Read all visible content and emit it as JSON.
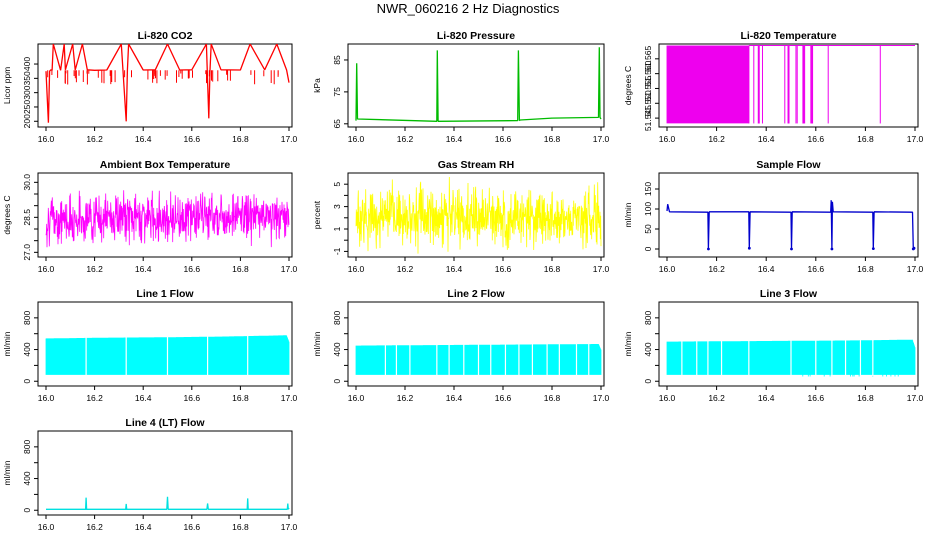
{
  "page_title": "NWR_060216 2 Hz Diagnostics",
  "chart_data": [
    {
      "type": "line",
      "title": "Li-820 CO2",
      "xlabel": "",
      "ylabel": "Licor ppm",
      "color": "#ff0000",
      "xlim": [
        16.0,
        17.0
      ],
      "ylim": [
        180,
        470
      ],
      "xticks": [
        "16.0",
        "16.2",
        "16.4",
        "16.6",
        "16.8",
        "17.0"
      ],
      "xtick_values": [
        16.0,
        16.2,
        16.4,
        16.6,
        16.8,
        17.0
      ],
      "yticks": [
        "200",
        "250",
        "300",
        "350",
        "400"
      ],
      "ytick_values": [
        200,
        250,
        300,
        350,
        400
      ],
      "series": [
        {
          "x": [
            16.0,
            16.01,
            16.015,
            16.02,
            16.025,
            16.03,
            16.06,
            16.075,
            16.08,
            16.11,
            16.12,
            16.15,
            16.17,
            16.2,
            16.25,
            16.31,
            16.33,
            16.335,
            16.34,
            16.4,
            16.45,
            16.5,
            16.55,
            16.6,
            16.66,
            16.67,
            16.675,
            16.68,
            16.72,
            16.8,
            16.84,
            16.9,
            16.95,
            16.99,
            17.0
          ],
          "y": [
            375,
            195,
            375,
            380,
            378,
            470,
            378,
            470,
            380,
            470,
            379,
            470,
            380,
            378,
            379,
            470,
            200,
            378,
            470,
            379,
            380,
            470,
            379,
            380,
            470,
            210,
            378,
            470,
            380,
            379,
            470,
            380,
            470,
            379,
            335
          ]
        }
      ]
    },
    {
      "type": "line",
      "title": "Li-820 Pressure",
      "xlabel": "",
      "ylabel": "kPa",
      "color": "#00bb00",
      "xlim": [
        16.0,
        17.0
      ],
      "ylim": [
        64,
        90
      ],
      "xticks": [
        "16.0",
        "16.2",
        "16.4",
        "16.6",
        "16.8",
        "17.0"
      ],
      "xtick_values": [
        16.0,
        16.2,
        16.4,
        16.6,
        16.8,
        17.0
      ],
      "yticks": [
        "65",
        "75",
        "85"
      ],
      "ytick_values": [
        65,
        75,
        85
      ],
      "series": [
        {
          "x": [
            16.0,
            16.003,
            16.006,
            16.33,
            16.332,
            16.335,
            16.66,
            16.663,
            16.667,
            16.67,
            16.8,
            16.99,
            16.993,
            16.996,
            17.0
          ],
          "y": [
            66,
            84,
            66.5,
            65.8,
            88,
            65.8,
            66,
            88,
            66,
            66.2,
            66.8,
            67,
            89,
            67,
            66.5
          ]
        }
      ]
    },
    {
      "type": "line",
      "title": "Li-820 Temperature",
      "xlabel": "",
      "ylabel": "degrees C",
      "color": "#ee00ee",
      "xlim": [
        16.0,
        17.0
      ],
      "ylim": [
        51.542,
        51.57
      ],
      "xticks": [
        "16.0",
        "16.2",
        "16.4",
        "16.6",
        "16.8",
        "17.0"
      ],
      "xtick_values": [
        16.0,
        16.2,
        16.4,
        16.6,
        16.8,
        17.0
      ],
      "yticks": [
        "51.545",
        "51.550",
        "51.555",
        "51.560",
        "51.565"
      ],
      "ytick_values": [
        51.545,
        51.55,
        51.555,
        51.56,
        51.565
      ],
      "series": [
        {
          "x": [
            16.0,
            16.33,
            16.35,
            16.37,
            16.385,
            16.475,
            16.49,
            16.52,
            16.525,
            16.55,
            16.555,
            16.58,
            16.585,
            16.65,
            16.86,
            17.0
          ],
          "y": [
            51.556,
            51.556,
            51.556,
            51.556,
            51.556,
            51.556,
            51.556,
            51.556,
            51.556,
            51.556,
            51.556,
            51.556,
            51.556,
            51.556,
            51.556,
            51.5695
          ]
        }
      ]
    },
    {
      "type": "line",
      "title": "Ambient Box Temperature",
      "xlabel": "",
      "ylabel": "degrees C",
      "color": "#ff00ff",
      "xlim": [
        16.0,
        17.0
      ],
      "ylim": [
        26.8,
        30.4
      ],
      "xticks": [
        "16.0",
        "16.2",
        "16.4",
        "16.6",
        "16.8",
        "17.0"
      ],
      "xtick_values": [
        16.0,
        16.2,
        16.4,
        16.6,
        16.8,
        17.0
      ],
      "yticks": [
        "27.0",
        "28.5",
        "30.0"
      ],
      "ytick_values": [
        27.0,
        28.5,
        30.0
      ],
      "minor_yticks": [
        27.5,
        28.0,
        29.0,
        29.5
      ],
      "series": [
        {
          "x": [
            16.0,
            16.25,
            16.5,
            16.75,
            17.0
          ],
          "y": [
            28.4,
            28.5,
            28.5,
            28.6,
            28.5
          ]
        }
      ]
    },
    {
      "type": "line",
      "title": "Gas Stream RH",
      "xlabel": "",
      "ylabel": "percent",
      "color": "#ffff00",
      "xlim": [
        16.0,
        17.0
      ],
      "ylim": [
        -1.5,
        6
      ],
      "xticks": [
        "16.0",
        "16.2",
        "16.4",
        "16.6",
        "16.8",
        "17.0"
      ],
      "xtick_values": [
        16.0,
        16.2,
        16.4,
        16.6,
        16.8,
        17.0
      ],
      "yticks": [
        "-1",
        "1",
        "3",
        "5"
      ],
      "ytick_values": [
        -1,
        1,
        3,
        5
      ],
      "minor_yticks": [
        0,
        2,
        4
      ],
      "series": [
        {
          "x": [
            16.0,
            16.25,
            16.5,
            16.75,
            17.0
          ],
          "y": [
            2.0,
            2.2,
            2.0,
            2.1,
            1.9
          ]
        }
      ]
    },
    {
      "type": "line",
      "title": "Sample Flow",
      "xlabel": "",
      "ylabel": "ml/min",
      "color": "#0000cc",
      "xlim": [
        16.0,
        17.0
      ],
      "ylim": [
        -20,
        190
      ],
      "xticks": [
        "16.0",
        "16.2",
        "16.4",
        "16.6",
        "16.8",
        "17.0"
      ],
      "xtick_values": [
        16.0,
        16.2,
        16.4,
        16.6,
        16.8,
        17.0
      ],
      "yticks": [
        "0",
        "50",
        "100",
        "150"
      ],
      "ytick_values": [
        0,
        50,
        100,
        150
      ],
      "series": [
        {
          "x": [
            16.0,
            16.003,
            16.01,
            16.165,
            16.167,
            16.17,
            16.33,
            16.332,
            16.335,
            16.5,
            16.502,
            16.505,
            16.66,
            16.662,
            16.665,
            16.667,
            16.67,
            16.83,
            16.832,
            16.835,
            16.99,
            16.993,
            16.996
          ],
          "y": [
            95,
            112,
            93,
            92,
            0,
            93,
            93,
            2,
            93,
            92,
            0,
            93,
            92,
            122,
            0,
            118,
            93,
            92,
            1,
            93,
            92,
            0,
            2
          ]
        }
      ]
    },
    {
      "type": "area",
      "title": "Line 1 Flow",
      "xlabel": "",
      "ylabel": "ml/min",
      "color": "#00ffff",
      "xlim": [
        16.0,
        17.0
      ],
      "ylim": [
        -60,
        1000
      ],
      "xticks": [
        "16.0",
        "16.2",
        "16.4",
        "16.6",
        "16.8",
        "17.0"
      ],
      "xtick_values": [
        16.0,
        16.2,
        16.4,
        16.6,
        16.8,
        17.0
      ],
      "yticks": [
        "0",
        "400",
        "800"
      ],
      "ytick_values": [
        0,
        400,
        800
      ],
      "minor_yticks": [
        200,
        600
      ],
      "band_low": 80,
      "band_high": [
        [
          16.0,
          540
        ],
        [
          16.25,
          550
        ],
        [
          16.5,
          555
        ],
        [
          16.75,
          565
        ],
        [
          16.99,
          580
        ],
        [
          17.0,
          500
        ]
      ],
      "gaps": [
        16.165,
        16.33,
        16.5,
        16.665,
        16.83
      ]
    },
    {
      "type": "area",
      "title": "Line 2 Flow",
      "xlabel": "",
      "ylabel": "ml/min",
      "color": "#00ffff",
      "xlim": [
        16.0,
        17.0
      ],
      "ylim": [
        -60,
        1000
      ],
      "xticks": [
        "16.0",
        "16.2",
        "16.4",
        "16.6",
        "16.8",
        "17.0"
      ],
      "xtick_values": [
        16.0,
        16.2,
        16.4,
        16.6,
        16.8,
        17.0
      ],
      "yticks": [
        "0",
        "400",
        "800"
      ],
      "ytick_values": [
        0,
        400,
        800
      ],
      "minor_yticks": [
        200,
        600
      ],
      "band_low": 80,
      "band_high": [
        [
          16.0,
          450
        ],
        [
          16.25,
          455
        ],
        [
          16.5,
          460
        ],
        [
          16.75,
          465
        ],
        [
          16.99,
          470
        ],
        [
          17.0,
          400
        ]
      ],
      "gaps": [
        16.165,
        16.33,
        16.5,
        16.665,
        16.83,
        16.12,
        16.22,
        16.38,
        16.44,
        16.55,
        16.61,
        16.72,
        16.78,
        16.9,
        16.95
      ]
    },
    {
      "type": "area",
      "title": "Line 3 Flow",
      "xlabel": "",
      "ylabel": "ml/min",
      "color": "#00ffff",
      "xlim": [
        16.0,
        17.0
      ],
      "ylim": [
        -60,
        1000
      ],
      "xticks": [
        "16.0",
        "16.2",
        "16.4",
        "16.6",
        "16.8",
        "17.0"
      ],
      "xtick_values": [
        16.0,
        16.2,
        16.4,
        16.6,
        16.8,
        17.0
      ],
      "yticks": [
        "0",
        "400",
        "800"
      ],
      "ytick_values": [
        0,
        400,
        800
      ],
      "minor_yticks": [
        200,
        600
      ],
      "band_low": 80,
      "band_high": [
        [
          16.0,
          500
        ],
        [
          16.25,
          505
        ],
        [
          16.5,
          510
        ],
        [
          16.75,
          515
        ],
        [
          16.99,
          525
        ],
        [
          17.0,
          430
        ]
      ],
      "gaps": [
        16.165,
        16.33,
        16.5,
        16.665,
        16.83,
        16.06,
        16.12,
        16.22,
        16.6,
        16.72,
        16.78
      ],
      "dips": [
        [
          16.52,
          16.98,
          60
        ]
      ]
    },
    {
      "type": "line",
      "title": "Line 4 (LT) Flow",
      "xlabel": "",
      "ylabel": "ml/min",
      "color": "#00e0e0",
      "xlim": [
        16.0,
        17.0
      ],
      "ylim": [
        -60,
        1000
      ],
      "xticks": [
        "16.0",
        "16.2",
        "16.4",
        "16.6",
        "16.8",
        "17.0"
      ],
      "xtick_values": [
        16.0,
        16.2,
        16.4,
        16.6,
        16.8,
        17.0
      ],
      "yticks": [
        "0",
        "400",
        "800"
      ],
      "ytick_values": [
        0,
        400,
        800
      ],
      "minor_yticks": [
        200,
        600
      ],
      "series": [
        {
          "x": [
            16.0,
            16.163,
            16.165,
            16.167,
            16.328,
            16.33,
            16.332,
            16.497,
            16.5,
            16.503,
            16.662,
            16.665,
            16.668,
            16.828,
            16.83,
            16.832,
            16.993,
            16.995,
            16.997,
            17.0
          ],
          "y": [
            12,
            12,
            160,
            12,
            12,
            80,
            12,
            12,
            170,
            12,
            12,
            85,
            12,
            12,
            150,
            12,
            12,
            85,
            12,
            30
          ]
        }
      ]
    }
  ]
}
